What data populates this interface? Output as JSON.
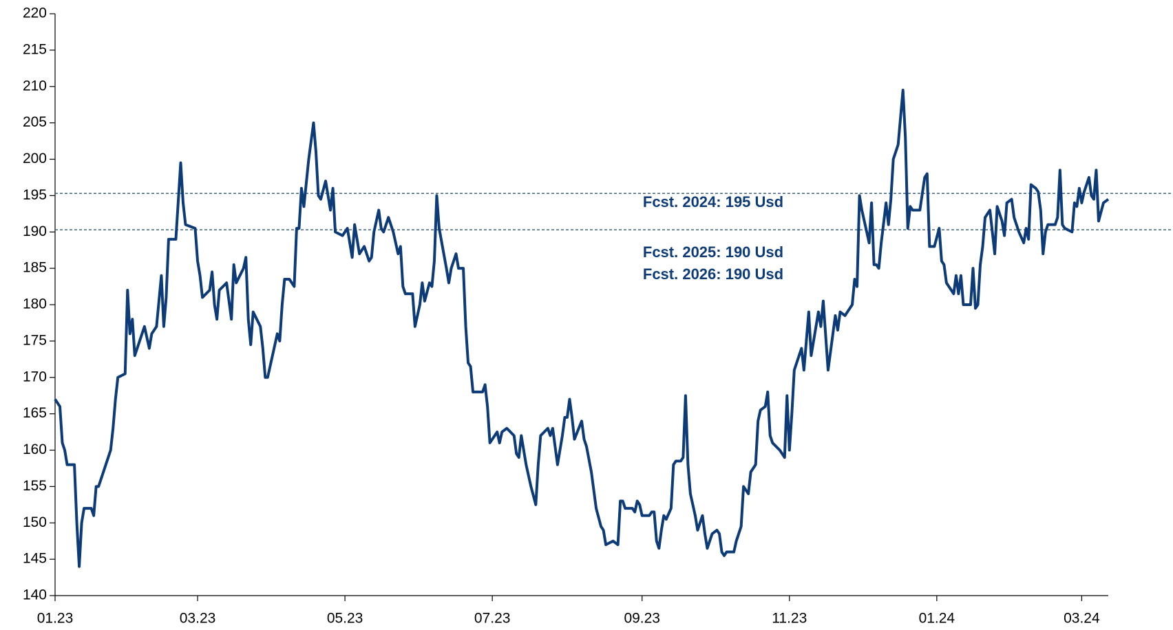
{
  "chart_data": {
    "type": "line",
    "color": "#0d3b78",
    "xlim": [
      0,
      436
    ],
    "xticks": [
      {
        "value": 0,
        "label": "01.23"
      },
      {
        "value": 59,
        "label": "03.23"
      },
      {
        "value": 120,
        "label": "05.23"
      },
      {
        "value": 181,
        "label": "07.23"
      },
      {
        "value": 243,
        "label": "09.23"
      },
      {
        "value": 304,
        "label": "11.23"
      },
      {
        "value": 365,
        "label": "01.24"
      },
      {
        "value": 425,
        "label": "03.24"
      }
    ],
    "ylim": [
      140,
      220
    ],
    "yticks": [
      140,
      145,
      150,
      155,
      160,
      165,
      170,
      175,
      180,
      185,
      190,
      195,
      200,
      205,
      210,
      215,
      220
    ],
    "reference_lines": [
      195.3,
      190.3
    ],
    "annotations": [
      "Fcst. 2024: 195 Usd",
      "Fcst. 2025: 190 Usd",
      "Fcst. 2026: 190 Usd"
    ],
    "x": [
      0,
      2,
      3,
      4,
      5,
      8,
      9,
      10,
      11,
      12,
      15,
      16,
      17,
      18,
      20,
      23,
      24,
      25,
      26,
      29,
      30,
      31,
      32,
      33,
      37,
      39,
      40,
      42,
      44,
      45,
      46,
      47,
      50,
      52,
      53,
      54,
      58,
      59,
      60,
      61,
      64,
      65,
      66,
      67,
      68,
      71,
      73,
      74,
      75,
      78,
      79,
      80,
      81,
      82,
      85,
      86,
      87,
      88,
      90,
      92,
      93,
      94,
      95,
      97,
      99,
      100,
      101,
      102,
      103,
      105,
      107,
      108,
      109,
      110,
      112,
      114,
      115,
      116,
      119,
      121,
      123,
      124,
      126,
      128,
      130,
      131,
      132,
      134,
      135,
      136,
      138,
      140,
      142,
      143,
      144,
      145,
      148,
      149,
      151,
      152,
      153,
      155,
      156,
      157,
      158,
      159,
      162,
      163,
      164,
      166,
      167,
      169,
      170,
      171,
      172,
      173,
      177,
      178,
      179,
      180,
      183,
      184,
      185,
      187,
      190,
      191,
      192,
      193,
      195,
      197,
      199,
      200,
      201,
      204,
      205,
      206,
      208,
      210,
      211,
      212,
      213,
      214,
      215,
      218,
      219,
      220,
      222,
      224,
      226,
      227,
      228,
      231,
      233,
      234,
      235,
      236,
      239,
      240,
      241,
      242,
      243,
      246,
      247,
      248,
      249,
      250,
      251,
      252,
      253,
      255,
      256,
      257,
      259,
      260,
      261,
      262,
      263,
      265,
      266,
      268,
      269,
      270,
      272,
      274,
      275,
      276,
      277,
      278,
      281,
      282,
      284,
      285,
      287,
      288,
      290,
      291,
      292,
      294,
      295,
      296,
      297,
      300,
      302,
      303,
      304,
      305,
      306,
      308,
      309,
      310,
      311,
      312,
      313,
      315,
      316,
      317,
      318,
      320,
      322,
      323,
      324,
      325,
      327,
      328,
      330,
      331,
      332,
      333,
      334,
      337,
      338,
      339,
      340,
      341,
      342,
      344,
      345,
      346,
      347,
      349,
      351,
      352,
      353,
      354,
      355,
      358,
      360,
      361,
      362,
      364,
      366,
      367,
      368,
      369,
      372,
      373,
      374,
      375,
      376,
      379,
      380,
      381,
      382,
      383,
      384,
      385,
      387,
      389,
      390,
      392,
      393,
      394,
      396,
      397,
      399,
      401,
      402,
      403,
      404,
      406,
      407,
      408,
      409,
      410,
      411,
      414,
      415,
      416,
      417,
      418,
      421,
      422,
      423,
      424,
      425,
      426,
      428,
      429,
      430,
      431,
      432,
      434,
      436
    ],
    "values": [
      167,
      166,
      161,
      160,
      158,
      158,
      150,
      144,
      150,
      152,
      152,
      151,
      155,
      155,
      157,
      160,
      163,
      167,
      170,
      170.5,
      182,
      176,
      178,
      173,
      177,
      174,
      176,
      177,
      184,
      177,
      181,
      189,
      189,
      199.5,
      194,
      191,
      190.5,
      186,
      184,
      181,
      182,
      184.5,
      180,
      178,
      182,
      183,
      178,
      185.5,
      183,
      185,
      186.5,
      178,
      174.5,
      179,
      177,
      174,
      170,
      170,
      173,
      176,
      175,
      180,
      183.5,
      183.5,
      182.5,
      190.5,
      190.5,
      196,
      193.5,
      200,
      205,
      201,
      195,
      194.5,
      197,
      193,
      196,
      190,
      189.5,
      190.5,
      186.5,
      191,
      187,
      188,
      186,
      186.5,
      190,
      193,
      190.5,
      190,
      192,
      190,
      187,
      188,
      182.5,
      181.5,
      181.5,
      177,
      180,
      183,
      180.5,
      183,
      182.5,
      186,
      195,
      190.5,
      185,
      183,
      185,
      187,
      185,
      185,
      177,
      172,
      171.5,
      168,
      168,
      169,
      166,
      161,
      162.5,
      161,
      162.5,
      163,
      162,
      159.5,
      159,
      162,
      158,
      155,
      152.5,
      158,
      162,
      163,
      162,
      163,
      158,
      162,
      164.5,
      164.5,
      167,
      164.5,
      161.5,
      164,
      161.5,
      160.5,
      157,
      152,
      149.5,
      149,
      147,
      147.5,
      147,
      153,
      153,
      152,
      152,
      151.5,
      153,
      152.5,
      151,
      151,
      151.5,
      151.5,
      147.5,
      146.5,
      149,
      151,
      150.5,
      152,
      158,
      158.5,
      158.5,
      159,
      167.5,
      158,
      154,
      151,
      149,
      151,
      148.5,
      146.5,
      148.5,
      149,
      148.5,
      146,
      145.5,
      146,
      146,
      147.5,
      149.5,
      155,
      154,
      157,
      158,
      164,
      165.5,
      166,
      168,
      162,
      161,
      160,
      159,
      167.5,
      160,
      165,
      171,
      173,
      174,
      171,
      175,
      179,
      173,
      177,
      179,
      177,
      180.5,
      171,
      176,
      178.5,
      176.5,
      179,
      178.5,
      179,
      180,
      183.5,
      182.5,
      195,
      193,
      188.5,
      194,
      185.5,
      185.5,
      185,
      188.5,
      194,
      191,
      194.5,
      200,
      202,
      209.5,
      203,
      190.5,
      193.5,
      193,
      193,
      197.5,
      198,
      188,
      188,
      190.5,
      186,
      185.5,
      183,
      181.5,
      184,
      181.5,
      184,
      180,
      180,
      185,
      179.5,
      180,
      185.5,
      188,
      192,
      193,
      187,
      193.5,
      191.5,
      189.5,
      194,
      194.5,
      192,
      190,
      188.5,
      190.5,
      189,
      196.5,
      196,
      195.5,
      193,
      187,
      190,
      191,
      191,
      192,
      198.5,
      191,
      190.5,
      190,
      194,
      193.5,
      196,
      194,
      195.5,
      197.5,
      195,
      194.5,
      198.5,
      191.5,
      194,
      194.5
    ]
  }
}
